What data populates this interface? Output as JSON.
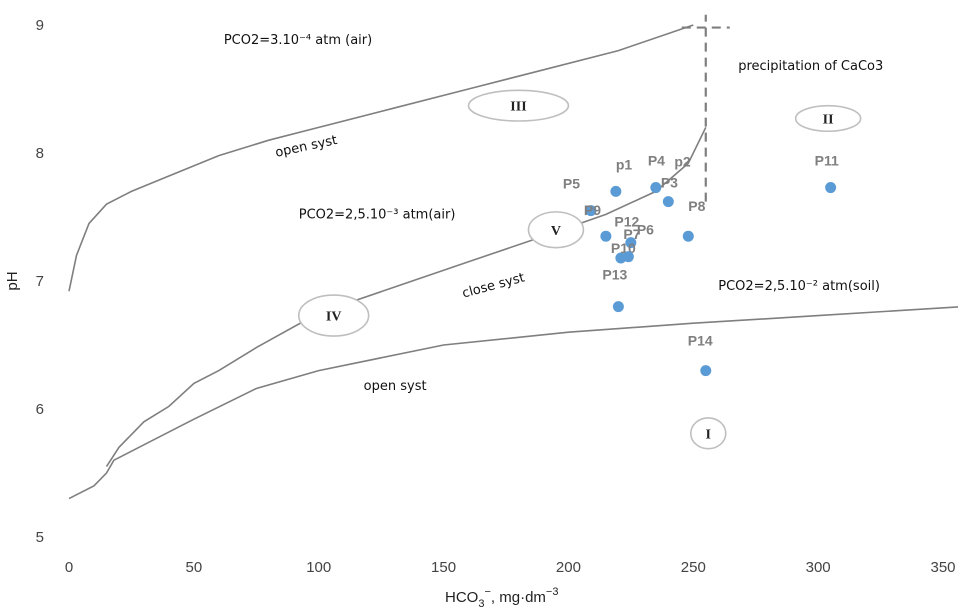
{
  "chart_data": {
    "type": "scatter",
    "xlabel_base": "HCO",
    "xlabel_sub": "3",
    "xlabel_sup": "−",
    "xlabel_unit": ", mg·dm",
    "xlabel_unit_sup": "−3",
    "ylabel": "pH",
    "xlim": [
      0,
      350
    ],
    "ylim": [
      5,
      9
    ],
    "x_ticks": [
      0,
      50,
      100,
      150,
      200,
      250,
      300,
      350
    ],
    "y_ticks": [
      5,
      6,
      7,
      8,
      9
    ],
    "grid": false,
    "point_color": "#5b9bd5",
    "curve_color": "#7f7f7f",
    "points": [
      {
        "label": "p1",
        "x": 219,
        "y": 7.7
      },
      {
        "label": "p2",
        "x": 240,
        "y": 7.62
      },
      {
        "label": "P4",
        "x": 235,
        "y": 7.73
      },
      {
        "label": "P5",
        "x": 209,
        "y": 7.55
      },
      {
        "label": "P6",
        "x": 225,
        "y": 7.3
      },
      {
        "label": "P8",
        "x": 248,
        "y": 7.35
      },
      {
        "label": "P9",
        "x": 215,
        "y": 7.35
      },
      {
        "label": "P10",
        "x": 221,
        "y": 7.18
      },
      {
        "label": "P12",
        "x": 224,
        "y": 7.19
      },
      {
        "label": "P13",
        "x": 220,
        "y": 6.8
      },
      {
        "label": "P11",
        "x": 305,
        "y": 7.73
      },
      {
        "label": "P14",
        "x": 255,
        "y": 6.3
      }
    ],
    "extra_labels": [
      "P3",
      "P7"
    ],
    "curves": [
      {
        "name": "upper-open",
        "points": [
          [
            0,
            6.92
          ],
          [
            3,
            7.2
          ],
          [
            8,
            7.45
          ],
          [
            15,
            7.6
          ],
          [
            25,
            7.7
          ],
          [
            40,
            7.82
          ],
          [
            60,
            7.98
          ],
          [
            80,
            8.1
          ],
          [
            100,
            8.2
          ],
          [
            130,
            8.35
          ],
          [
            160,
            8.5
          ],
          [
            190,
            8.65
          ],
          [
            220,
            8.8
          ],
          [
            250,
            9.0
          ]
        ]
      },
      {
        "name": "middle-closed",
        "points": [
          [
            15,
            5.55
          ],
          [
            20,
            5.7
          ],
          [
            30,
            5.9
          ],
          [
            40,
            6.02
          ],
          [
            50,
            6.2
          ],
          [
            60,
            6.3
          ],
          [
            75,
            6.48
          ],
          [
            100,
            6.75
          ],
          [
            130,
            6.95
          ],
          [
            160,
            7.15
          ],
          [
            190,
            7.35
          ],
          [
            215,
            7.52
          ],
          [
            235,
            7.7
          ],
          [
            248,
            7.92
          ],
          [
            255,
            8.2
          ]
        ]
      },
      {
        "name": "lower-open",
        "points": [
          [
            0,
            5.3
          ],
          [
            10,
            5.4
          ],
          [
            15,
            5.5
          ],
          [
            18,
            5.6
          ],
          [
            30,
            5.72
          ],
          [
            50,
            5.92
          ],
          [
            75,
            6.16
          ],
          [
            100,
            6.3
          ],
          [
            150,
            6.5
          ],
          [
            200,
            6.6
          ],
          [
            250,
            6.67
          ],
          [
            300,
            6.73
          ],
          [
            358,
            6.8
          ]
        ]
      }
    ],
    "curve_labels": [
      {
        "text": "PCO2=3.10⁻⁴ atm (air)",
        "x": 62,
        "y": 8.85,
        "rot": 0
      },
      {
        "text": "open syst",
        "x": 83,
        "y": 7.97,
        "rot": -12
      },
      {
        "text": "PCO2=2,5.10⁻³ atm(air)",
        "x": 92,
        "y": 7.49,
        "rot": 0
      },
      {
        "text": "close syst",
        "x": 158,
        "y": 6.87,
        "rot": -15
      },
      {
        "text": "PCO2=2,5.10⁻² atm(soil)",
        "x": 260,
        "y": 6.93,
        "rot": 0
      },
      {
        "text": "open syst",
        "x": 118,
        "y": 6.15,
        "rot": 0
      },
      {
        "text": "precipitation of CaCo3",
        "x": 268,
        "y": 8.65,
        "rot": 0
      }
    ],
    "zones": [
      {
        "label": "III",
        "x": 180,
        "y": 8.37,
        "rx": 20,
        "ry": 0.12
      },
      {
        "label": "II",
        "x": 304,
        "y": 8.27,
        "rx": 13,
        "ry": 0.1
      },
      {
        "label": "V",
        "x": 195,
        "y": 7.4,
        "rx": 11,
        "ry": 0.14
      },
      {
        "label": "IV",
        "x": 106,
        "y": 6.73,
        "rx": 14,
        "ry": 0.16
      },
      {
        "label": "I",
        "x": 256,
        "y": 5.81,
        "rx": 7,
        "ry": 0.12
      }
    ],
    "boundary": {
      "x": 255,
      "y_from": 7.62,
      "y_to": 9.08,
      "cross_y": 8.98
    }
  }
}
